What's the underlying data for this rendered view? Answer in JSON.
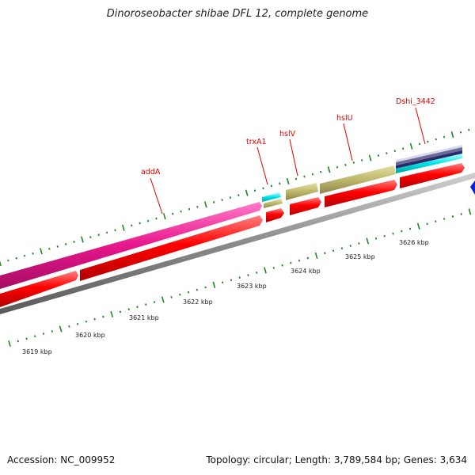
{
  "title": "Dinoroseobacter shibae DFL 12, complete genome",
  "accession": {
    "label": "Accession:",
    "value": "NC_009952"
  },
  "summary": {
    "topology_label": "Topology:",
    "topology": "circular",
    "length_label": "Length:",
    "length": "3,789,584 bp",
    "genes_label": "Genes:",
    "genes": "3,634"
  },
  "gene_labels": [
    {
      "id": "addA",
      "text": "addA"
    },
    {
      "id": "trxA1",
      "text": "trxA1"
    },
    {
      "id": "hslV",
      "text": "hslV"
    },
    {
      "id": "hslU",
      "text": "hslU"
    },
    {
      "id": "Dshi_3442",
      "text": "Dshi_3442"
    }
  ],
  "kbp_ticks": [
    "3619 kbp",
    "3620 kbp",
    "3621 kbp",
    "3622 kbp",
    "3623 kbp",
    "3624 kbp",
    "3625 kbp",
    "3626 kbp"
  ],
  "colors": {
    "magenta": "#e8168c",
    "red": "#ff0000",
    "olive": "#bdb76b",
    "cyan": "#00e5e5",
    "slate": "#6a6a9a",
    "navy": "#2a2a6a",
    "blue": "#0022dd",
    "backbone": "#8a8a8a",
    "tick_green": "#1a8a1a",
    "label_red": "#e00000"
  }
}
